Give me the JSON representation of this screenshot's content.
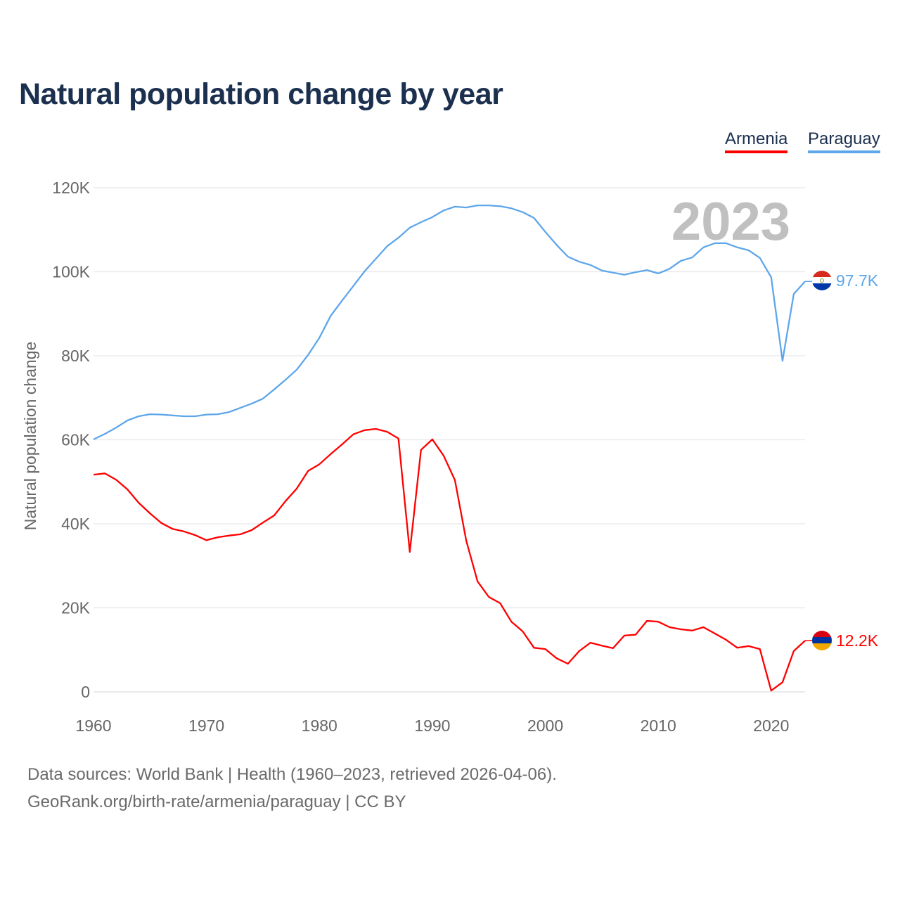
{
  "chart_data": {
    "type": "line",
    "title": "Natural population change by year",
    "xlabel": "",
    "ylabel": "Natural population change",
    "xlim": [
      1960,
      2023
    ],
    "ylim": [
      0,
      120000
    ],
    "yticks": [
      0,
      20000,
      40000,
      60000,
      80000,
      100000,
      120000
    ],
    "ytick_labels": [
      "0",
      "20K",
      "40K",
      "60K",
      "80K",
      "100K",
      "120K"
    ],
    "xticks": [
      1960,
      1970,
      1980,
      1990,
      2000,
      2010,
      2020
    ],
    "xtick_labels": [
      "1960",
      "1970",
      "1980",
      "1990",
      "2000",
      "2010",
      "2020"
    ],
    "grid": true,
    "legend_position": "top-right",
    "year_watermark": "2023",
    "x": [
      1960,
      1961,
      1962,
      1963,
      1964,
      1965,
      1966,
      1967,
      1968,
      1969,
      1970,
      1971,
      1972,
      1973,
      1974,
      1975,
      1976,
      1977,
      1978,
      1979,
      1980,
      1981,
      1982,
      1983,
      1984,
      1985,
      1986,
      1987,
      1988,
      1989,
      1990,
      1991,
      1992,
      1993,
      1994,
      1995,
      1996,
      1997,
      1998,
      1999,
      2000,
      2001,
      2002,
      2003,
      2004,
      2005,
      2006,
      2007,
      2008,
      2009,
      2010,
      2011,
      2012,
      2013,
      2014,
      2015,
      2016,
      2017,
      2018,
      2019,
      2020,
      2021,
      2022,
      2023
    ],
    "series": [
      {
        "name": "Armenia",
        "color": "#ff0000",
        "end_label": "12.2K",
        "flag": "armenia-flag-icon",
        "values": [
          51.7,
          52.0,
          50.5,
          48.2,
          45.0,
          42.5,
          40.2,
          38.8,
          38.2,
          37.3,
          36.1,
          36.8,
          37.2,
          37.5,
          38.5,
          40.3,
          42.0,
          45.4,
          48.4,
          52.6,
          54.2,
          56.6,
          58.9,
          61.3,
          62.3,
          62.6,
          61.9,
          60.3,
          33.3,
          57.6,
          60.1,
          56.2,
          50.4,
          36.0,
          26.3,
          22.6,
          21.1,
          16.7,
          14.4,
          10.5,
          10.2,
          8.0,
          6.7,
          9.7,
          11.7,
          11.0,
          10.4,
          13.4,
          13.6,
          16.9,
          16.7,
          15.4,
          14.9,
          14.6,
          15.4,
          13.9,
          12.4,
          10.5,
          10.9,
          10.2,
          0.3,
          2.3,
          9.7,
          12.2
        ]
      },
      {
        "name": "Paraguay",
        "color": "#5ea6ea",
        "end_label": "97.7K",
        "flag": "paraguay-flag-icon",
        "values": [
          60.1,
          61.4,
          62.9,
          64.6,
          65.6,
          66.1,
          66.0,
          65.8,
          65.6,
          65.6,
          66.0,
          66.1,
          66.6,
          67.6,
          68.6,
          69.8,
          72.0,
          74.3,
          76.7,
          80.2,
          84.3,
          89.5,
          93.1,
          96.6,
          100.1,
          103.1,
          106.1,
          108.1,
          110.5,
          111.8,
          113.0,
          114.6,
          115.5,
          115.3,
          115.8,
          115.8,
          115.6,
          115.1,
          114.2,
          112.8,
          109.5,
          106.4,
          103.6,
          102.4,
          101.6,
          100.3,
          99.8,
          99.3,
          99.9,
          100.4,
          99.6,
          100.7,
          102.6,
          103.4,
          105.8,
          106.8,
          106.8,
          105.8,
          105.1,
          103.3,
          98.7,
          78.8,
          94.7,
          97.7
        ]
      }
    ],
    "value_unit_multiplier": 1000
  },
  "footer": {
    "sources": "Data sources: World Bank | Health (1960–2023, retrieved 2026-04-06).",
    "credit": "GeoRank.org/birth-rate/armenia/paraguay | CC BY"
  }
}
